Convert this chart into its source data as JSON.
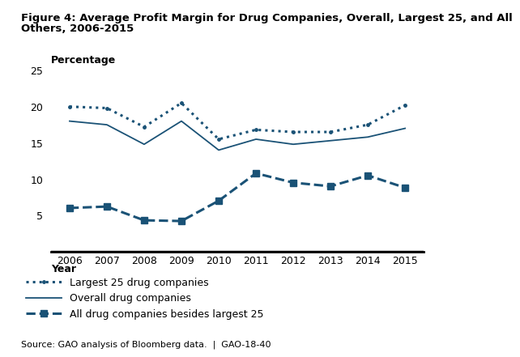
{
  "title_line1": "Figure 4: Average Profit Margin for Drug Companies, Overall, Largest 25, and All",
  "title_line2": "Others, 2006-2015",
  "ylabel_text": "Percentage",
  "xlabel_text": "Year",
  "source": "Source: GAO analysis of Bloomberg data.  |  GAO-18-40",
  "years": [
    2006,
    2007,
    2008,
    2009,
    2010,
    2011,
    2012,
    2013,
    2014,
    2015
  ],
  "largest_25": [
    20.0,
    19.8,
    17.2,
    20.5,
    15.5,
    16.8,
    16.5,
    16.5,
    17.5,
    20.2
  ],
  "overall": [
    18.0,
    17.5,
    14.8,
    18.0,
    14.0,
    15.5,
    14.8,
    15.3,
    15.8,
    17.0
  ],
  "all_others": [
    6.0,
    6.2,
    4.3,
    4.2,
    7.0,
    10.8,
    9.5,
    9.0,
    10.5,
    8.8
  ],
  "color": "#1A5276",
  "ylim": [
    0,
    25
  ],
  "yticks": [
    0,
    5,
    10,
    15,
    20,
    25
  ],
  "title_fontsize": 9.5,
  "tick_fontsize": 9,
  "legend_fontsize": 9,
  "source_fontsize": 8,
  "ylabel_fontsize": 9,
  "xlabel_fontsize": 9
}
